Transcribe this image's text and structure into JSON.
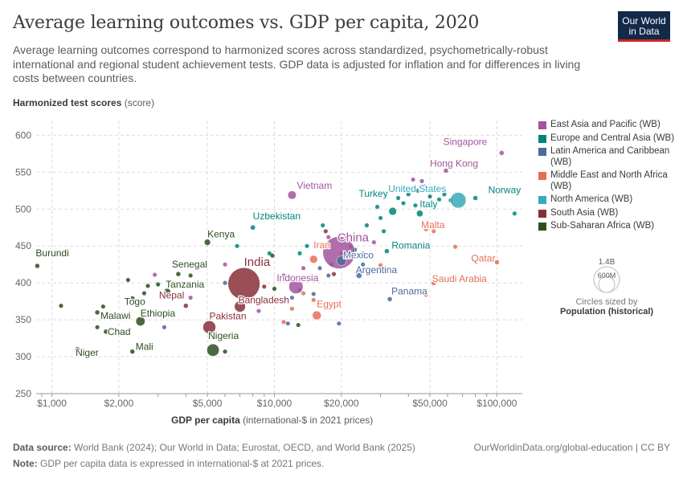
{
  "header": {
    "title": "Average learning outcomes vs. GDP per capita, 2020",
    "subtitle": "Average learning outcomes correspond to harmonized scores across standardized, psychometrically-robust international and regional student achievement tests. GDP data is adjusted for inflation and for differences in living costs between countries.",
    "logo_line1": "Our World",
    "logo_line2": "in Data"
  },
  "axes": {
    "y_label_bold": "Harmonized test scores",
    "y_label_unit": " (score)",
    "x_label_bold": "GDP per capita",
    "x_label_unit": " (international-$ in 2021 prices)"
  },
  "legend": {
    "items": [
      {
        "label": "East Asia and Pacific (WB)",
        "color": "#a2559c"
      },
      {
        "label": "Europe and Central Asia (WB)",
        "color": "#00847e"
      },
      {
        "label": "Latin America and Caribbean (WB)",
        "color": "#4c6a9c"
      },
      {
        "label": "Middle East and North Africa (WB)",
        "color": "#e56e5a"
      },
      {
        "label": "North America (WB)",
        "color": "#38aaba"
      },
      {
        "label": "South Asia (WB)",
        "color": "#883039"
      },
      {
        "label": "Sub-Saharan Africa (WB)",
        "color": "#2c4f1e"
      }
    ],
    "size_big": "1.4B",
    "size_small": "600M",
    "size_note": "Circles sized by",
    "size_title": "Population (historical)"
  },
  "footer": {
    "source_label": "Data source:",
    "source_text": " World Bank (2024); Our World in Data; Eurostat, OECD, and World Bank (2025)",
    "right_text": "OurWorldinData.org/global-education | CC BY",
    "note_label": "Note:",
    "note_text": " GDP per capita data is expressed in international-$ at 2021 prices."
  },
  "chart_data": {
    "type": "scatter",
    "title": "Average learning outcomes vs. GDP per capita, 2020",
    "xlabel": "GDP per capita (international-$ in 2021 prices)",
    "ylabel": "Harmonized test scores (score)",
    "x_scale": "log",
    "xlim": [
      850,
      130000
    ],
    "ylim": [
      250,
      620
    ],
    "x_ticks": [
      1000,
      2000,
      5000,
      10000,
      20000,
      50000,
      100000
    ],
    "x_tick_labels": [
      "$1,000",
      "$2,000",
      "$5,000",
      "$10,000",
      "$20,000",
      "$50,000",
      "$100,000"
    ],
    "y_ticks": [
      250,
      300,
      350,
      400,
      450,
      500,
      550,
      600
    ],
    "grid": true,
    "size_encoding": "Population (historical)",
    "regions": {
      "EAP": "#a2559c",
      "ECA": "#00847e",
      "LAC": "#4c6a9c",
      "MENA": "#e56e5a",
      "NA": "#38aaba",
      "SA": "#883039",
      "SSA": "#2c4f1e"
    },
    "points": [
      {
        "label": "Singapore",
        "x": 105000,
        "y": 576,
        "pop": 5.7,
        "region": "EAP"
      },
      {
        "label": "Hong Kong",
        "x": 59000,
        "y": 552,
        "pop": 7.5,
        "region": "EAP"
      },
      {
        "label": "Vietnam",
        "x": 12000,
        "y": 519,
        "pop": 97,
        "region": "EAP"
      },
      {
        "label": "China",
        "x": 19500,
        "y": 441,
        "pop": 1411,
        "region": "EAP"
      },
      {
        "label": "Indonesia",
        "x": 12500,
        "y": 395,
        "pop": 274,
        "region": "EAP"
      },
      {
        "label": "United States",
        "x": 67000,
        "y": 512,
        "pop": 331,
        "region": "NA"
      },
      {
        "label": "Norway",
        "x": 80000,
        "y": 515,
        "pop": 5.4,
        "region": "ECA"
      },
      {
        "label": "Turkey",
        "x": 34000,
        "y": 497,
        "pop": 84,
        "region": "ECA"
      },
      {
        "label": "Italy",
        "x": 45000,
        "y": 494,
        "pop": 59,
        "region": "ECA"
      },
      {
        "label": "Uzbekistan",
        "x": 8000,
        "y": 475,
        "pop": 34,
        "region": "ECA"
      },
      {
        "label": "Romania",
        "x": 32000,
        "y": 443,
        "pop": 19,
        "region": "ECA"
      },
      {
        "label": "Malta",
        "x": 48000,
        "y": 473,
        "pop": 0.5,
        "region": "MENA"
      },
      {
        "label": "Iran",
        "x": 15000,
        "y": 432,
        "pop": 84,
        "region": "MENA"
      },
      {
        "label": "Qatar",
        "x": 100000,
        "y": 428,
        "pop": 2.8,
        "region": "MENA"
      },
      {
        "label": "Saudi Arabia",
        "x": 52000,
        "y": 400,
        "pop": 35,
        "region": "MENA"
      },
      {
        "label": "Egypt",
        "x": 15500,
        "y": 356,
        "pop": 107,
        "region": "MENA"
      },
      {
        "label": "Mexico",
        "x": 20000,
        "y": 430,
        "pop": 126,
        "region": "LAC"
      },
      {
        "label": "Argentina",
        "x": 24000,
        "y": 410,
        "pop": 45,
        "region": "LAC"
      },
      {
        "label": "Panama",
        "x": 33000,
        "y": 378,
        "pop": 4.3,
        "region": "LAC"
      },
      {
        "label": "India",
        "x": 7300,
        "y": 399,
        "pop": 1396,
        "region": "SA"
      },
      {
        "label": "Bangladesh",
        "x": 7000,
        "y": 368,
        "pop": 167,
        "region": "SA"
      },
      {
        "label": "Pakistan",
        "x": 5100,
        "y": 340,
        "pop": 227,
        "region": "SA"
      },
      {
        "label": "Nepal",
        "x": 4000,
        "y": 369,
        "pop": 29,
        "region": "SA"
      },
      {
        "label": "Kenya",
        "x": 5000,
        "y": 455,
        "pop": 52,
        "region": "SSA"
      },
      {
        "label": "Senegal",
        "x": 3700,
        "y": 412,
        "pop": 16,
        "region": "SSA"
      },
      {
        "label": "Tanzania",
        "x": 3300,
        "y": 388,
        "pop": 61,
        "region": "SSA"
      },
      {
        "label": "Togo",
        "x": 2300,
        "y": 379,
        "pop": 8.5,
        "region": "SSA"
      },
      {
        "label": "Burundi",
        "x": 860,
        "y": 423,
        "pop": 12,
        "region": "SSA"
      },
      {
        "label": "Malawi",
        "x": 1600,
        "y": 360,
        "pop": 19,
        "region": "SSA"
      },
      {
        "label": "Ethiopia",
        "x": 2500,
        "y": 348,
        "pop": 115,
        "region": "SSA"
      },
      {
        "label": "Chad",
        "x": 1750,
        "y": 334,
        "pop": 16,
        "region": "SSA"
      },
      {
        "label": "Niger",
        "x": 1300,
        "y": 310,
        "pop": 24,
        "region": "SSA"
      },
      {
        "label": "Mali",
        "x": 2300,
        "y": 307,
        "pop": 20,
        "region": "SSA"
      },
      {
        "label": "Nigeria",
        "x": 5300,
        "y": 309,
        "pop": 208,
        "region": "SSA"
      }
    ],
    "unlabeled_points": [
      {
        "x": 42000,
        "y": 540,
        "region": "EAP"
      },
      {
        "x": 46000,
        "y": 538,
        "region": "EAP"
      },
      {
        "x": 47000,
        "y": 531,
        "region": "EAP"
      },
      {
        "x": 28000,
        "y": 455,
        "region": "EAP"
      },
      {
        "x": 17500,
        "y": 462,
        "region": "EAP"
      },
      {
        "x": 11000,
        "y": 410,
        "region": "EAP"
      },
      {
        "x": 8500,
        "y": 362,
        "region": "EAP"
      },
      {
        "x": 6000,
        "y": 425,
        "region": "EAP"
      },
      {
        "x": 4200,
        "y": 380,
        "region": "EAP"
      },
      {
        "x": 2900,
        "y": 411,
        "region": "EAP"
      },
      {
        "x": 13500,
        "y": 420,
        "region": "EAP"
      },
      {
        "x": 22000,
        "y": 449,
        "region": "EAP"
      },
      {
        "x": 40000,
        "y": 520,
        "region": "ECA"
      },
      {
        "x": 44000,
        "y": 525,
        "region": "ECA"
      },
      {
        "x": 50000,
        "y": 517,
        "region": "ECA"
      },
      {
        "x": 55000,
        "y": 513,
        "region": "ECA"
      },
      {
        "x": 58000,
        "y": 520,
        "region": "ECA"
      },
      {
        "x": 62000,
        "y": 512,
        "region": "ECA"
      },
      {
        "x": 38000,
        "y": 508,
        "region": "ECA"
      },
      {
        "x": 43000,
        "y": 505,
        "region": "ECA"
      },
      {
        "x": 52000,
        "y": 503,
        "region": "ECA"
      },
      {
        "x": 36000,
        "y": 515,
        "region": "ECA"
      },
      {
        "x": 30000,
        "y": 488,
        "region": "ECA"
      },
      {
        "x": 29000,
        "y": 503,
        "region": "ECA"
      },
      {
        "x": 120000,
        "y": 494,
        "region": "ECA"
      },
      {
        "x": 26000,
        "y": 478,
        "region": "ECA"
      },
      {
        "x": 31000,
        "y": 470,
        "region": "ECA"
      },
      {
        "x": 16500,
        "y": 478,
        "region": "ECA"
      },
      {
        "x": 21000,
        "y": 460,
        "region": "ECA"
      },
      {
        "x": 14000,
        "y": 450,
        "region": "ECA"
      },
      {
        "x": 13000,
        "y": 440,
        "region": "ECA"
      },
      {
        "x": 18000,
        "y": 425,
        "region": "ECA"
      },
      {
        "x": 9500,
        "y": 440,
        "region": "ECA"
      },
      {
        "x": 6800,
        "y": 450,
        "region": "ECA"
      },
      {
        "x": 23000,
        "y": 445,
        "region": "ECA"
      },
      {
        "x": 25000,
        "y": 440,
        "region": "ECA"
      },
      {
        "x": 16000,
        "y": 420,
        "region": "LAC"
      },
      {
        "x": 17500,
        "y": 410,
        "region": "LAC"
      },
      {
        "x": 14500,
        "y": 405,
        "region": "LAC"
      },
      {
        "x": 13000,
        "y": 390,
        "region": "LAC"
      },
      {
        "x": 12000,
        "y": 380,
        "region": "LAC"
      },
      {
        "x": 10500,
        "y": 405,
        "region": "LAC"
      },
      {
        "x": 15000,
        "y": 385,
        "region": "LAC"
      },
      {
        "x": 19500,
        "y": 345,
        "region": "LAC"
      },
      {
        "x": 9000,
        "y": 375,
        "region": "LAC"
      },
      {
        "x": 6000,
        "y": 400,
        "region": "LAC"
      },
      {
        "x": 3200,
        "y": 340,
        "region": "LAC"
      },
      {
        "x": 25000,
        "y": 425,
        "region": "LAC"
      },
      {
        "x": 20000,
        "y": 440,
        "region": "LAC"
      },
      {
        "x": 11500,
        "y": 345,
        "region": "LAC"
      },
      {
        "x": 9000,
        "y": 378,
        "region": "SSA"
      },
      {
        "x": 10000,
        "y": 392,
        "region": "SSA"
      },
      {
        "x": 2200,
        "y": 404,
        "region": "SSA"
      },
      {
        "x": 2700,
        "y": 396,
        "region": "SSA"
      },
      {
        "x": 3000,
        "y": 398,
        "region": "SSA"
      },
      {
        "x": 3400,
        "y": 401,
        "region": "SSA"
      },
      {
        "x": 4200,
        "y": 410,
        "region": "SSA"
      },
      {
        "x": 2600,
        "y": 386,
        "region": "SSA"
      },
      {
        "x": 1600,
        "y": 340,
        "region": "SSA"
      },
      {
        "x": 1700,
        "y": 368,
        "region": "SSA"
      },
      {
        "x": 1100,
        "y": 369,
        "region": "SSA"
      },
      {
        "x": 1950,
        "y": 355,
        "region": "SSA"
      },
      {
        "x": 3300,
        "y": 382,
        "region": "SSA"
      },
      {
        "x": 6000,
        "y": 307,
        "region": "SSA"
      },
      {
        "x": 12800,
        "y": 343,
        "region": "SSA"
      },
      {
        "x": 9800,
        "y": 437,
        "region": "SSA"
      },
      {
        "x": 18500,
        "y": 412,
        "region": "SA"
      },
      {
        "x": 9000,
        "y": 395,
        "region": "SA"
      },
      {
        "x": 17000,
        "y": 470,
        "region": "SA"
      },
      {
        "x": 65000,
        "y": 449,
        "region": "MENA"
      },
      {
        "x": 48000,
        "y": 384,
        "region": "MENA"
      },
      {
        "x": 52000,
        "y": 470,
        "region": "MENA"
      },
      {
        "x": 30000,
        "y": 424,
        "region": "MENA"
      },
      {
        "x": 15000,
        "y": 377,
        "region": "MENA"
      },
      {
        "x": 12000,
        "y": 365,
        "region": "MENA"
      },
      {
        "x": 11000,
        "y": 347,
        "region": "MENA"
      },
      {
        "x": 13500,
        "y": 386,
        "region": "MENA"
      }
    ]
  }
}
